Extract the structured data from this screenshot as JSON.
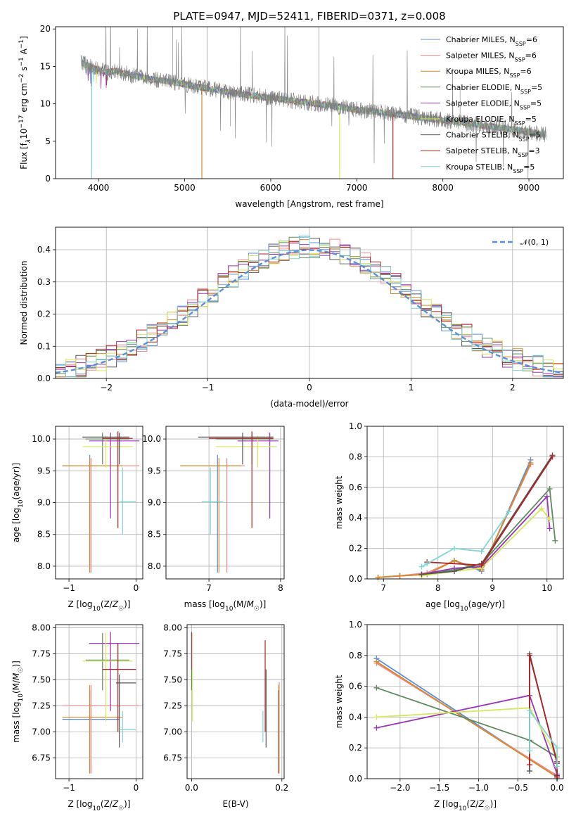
{
  "figure_title": "PLATE=0947, MJD=52411, FIBERID=0371, z=0.008",
  "series": [
    {
      "key": "chab_miles",
      "label": "Chabrier MILES, N",
      "sub": "SSP",
      "suffix": "=6",
      "color": "#5b8fd9"
    },
    {
      "key": "salp_miles",
      "label": "Salpeter MILES, N",
      "sub": "SSP",
      "suffix": "=6",
      "color": "#f08a8a"
    },
    {
      "key": "krou_miles",
      "label": "Kroupa MILES, N",
      "sub": "SSP",
      "suffix": "=6",
      "color": "#d48a2a"
    },
    {
      "key": "chab_elodie",
      "label": "Chabrier ELODIE, N",
      "sub": "SSP",
      "suffix": "=5",
      "color": "#5e8a5e"
    },
    {
      "key": "salp_elodie",
      "label": "Salpeter ELODIE, N",
      "sub": "SSP",
      "suffix": "=5",
      "color": "#9a35b8"
    },
    {
      "key": "krou_elodie",
      "label": "Kroupa ELODIE, N",
      "sub": "SSP",
      "suffix": "=5",
      "color": "#d4e85a"
    },
    {
      "key": "chab_stelib",
      "label": "Chabrier STELIB, N",
      "sub": "SSP",
      "suffix": "=5",
      "color": "#555555"
    },
    {
      "key": "salp_stelib",
      "label": "Salpeter STELIB, N",
      "sub": "SSP",
      "suffix": "=3",
      "color": "#b22222"
    },
    {
      "key": "krou_stelib",
      "label": "Kroupa STELIB, N",
      "sub": "SSP",
      "suffix": "=5",
      "color": "#7fd6d6"
    }
  ],
  "chart_data": [
    {
      "id": "spectrum",
      "type": "line",
      "xlabel": "wavelength [Angstrom, rest frame]",
      "ylabel_parts": [
        "Flux [f",
        "λ",
        "10",
        "−17",
        " erg cm",
        "−2",
        " s",
        "−1",
        " A",
        "−1",
        "]"
      ],
      "xlim": [
        3500,
        9400
      ],
      "ylim": [
        0,
        20.3
      ],
      "xticks": [
        4000,
        5000,
        6000,
        7000,
        8000,
        9000
      ],
      "yticks": [
        0,
        5,
        10,
        15,
        20
      ],
      "continuum": {
        "x": [
          3800,
          3900,
          4000,
          4100,
          4200,
          4400,
          4600,
          4800,
          5000,
          5200,
          5400,
          5600,
          5800,
          6000,
          6200,
          6400,
          6600,
          6800,
          7000,
          7200,
          7400,
          7600,
          7800,
          8000,
          8200,
          8400,
          8600,
          8800,
          9000,
          9200
        ],
        "y": [
          15.5,
          15.0,
          14.6,
          14.2,
          14.4,
          13.8,
          13.3,
          13.0,
          12.6,
          12.2,
          11.8,
          11.4,
          11.1,
          10.8,
          10.5,
          10.2,
          9.9,
          9.6,
          9.2,
          9.0,
          8.7,
          8.4,
          8.1,
          7.8,
          7.5,
          7.2,
          6.9,
          6.6,
          6.2,
          5.9
        ]
      }
    },
    {
      "id": "residuals",
      "type": "step",
      "xlabel": "(data-model)/error",
      "ylabel": "Normed distribution",
      "xlim": [
        -2.5,
        2.5
      ],
      "ylim": [
        0,
        0.47
      ],
      "xticks": [
        -2,
        -1,
        0,
        1,
        2
      ],
      "yticks": [
        0.0,
        0.1,
        0.2,
        0.3,
        0.4
      ],
      "legend": "𝒩(0, 1)",
      "legend_color": "#5b8fd9"
    },
    {
      "id": "age_vs_Z",
      "type": "errorbar",
      "xlabel": "Z [log10(Z/Z☉)]",
      "ylabel": "age [log10(age/yr)]",
      "xlim": [
        -1.2,
        0.1
      ],
      "ylim": [
        7.8,
        10.2
      ],
      "xticks": [
        -1,
        0
      ],
      "yticks": [
        8.0,
        8.5,
        9.0,
        9.5,
        10.0
      ],
      "points": [
        {
          "s": "chab_miles",
          "x": -0.69,
          "y": 9.58,
          "xe": [
            -1.1,
            -0.25
          ],
          "ye": [
            7.9,
            9.75
          ]
        },
        {
          "s": "salp_miles",
          "x": -0.67,
          "y": 9.58,
          "xe": [
            -1.1,
            0.05
          ],
          "ye": [
            7.9,
            9.7
          ]
        },
        {
          "s": "krou_miles",
          "x": -0.69,
          "y": 9.58,
          "xe": [
            -1.1,
            -0.2
          ],
          "ye": [
            7.9,
            9.7
          ]
        },
        {
          "s": "chab_elodie",
          "x": -0.5,
          "y": 10.0,
          "xe": [
            -0.75,
            -0.1
          ],
          "ye": [
            9.6,
            10.1
          ]
        },
        {
          "s": "salp_elodie",
          "x": -0.38,
          "y": 9.97,
          "xe": [
            -0.7,
            0.05
          ],
          "ye": [
            8.75,
            10.1
          ]
        },
        {
          "s": "krou_elodie",
          "x": -0.45,
          "y": 9.88,
          "xe": [
            -0.8,
            -0.05
          ],
          "ye": [
            9.55,
            10.05
          ]
        },
        {
          "s": "chab_stelib",
          "x": -0.25,
          "y": 10.03,
          "xe": [
            -0.8,
            -0.1
          ],
          "ye": [
            9.6,
            10.1
          ]
        },
        {
          "s": "salp_stelib",
          "x": -0.27,
          "y": 10.01,
          "xe": [
            -0.5,
            -0.05
          ],
          "ye": [
            8.6,
            10.12
          ]
        },
        {
          "s": "krou_stelib",
          "x": -0.2,
          "y": 9.02,
          "xe": [
            -0.25,
            0.0
          ],
          "ye": [
            8.5,
            9.55
          ]
        }
      ]
    },
    {
      "id": "age_vs_mass",
      "type": "errorbar",
      "xlabel": "mass [log10(M/M☉)]",
      "ylabel": "",
      "xlim": [
        6.4,
        8.05
      ],
      "ylim": [
        7.8,
        10.2
      ],
      "xticks": [
        7,
        8
      ],
      "yticks": [
        8.0,
        8.5,
        9.0,
        9.5,
        10.0
      ],
      "points": [
        {
          "s": "chab_miles",
          "x": 7.12,
          "y": 9.58,
          "xe": [
            6.6,
            7.45
          ],
          "ye": [
            7.9,
            9.75
          ]
        },
        {
          "s": "salp_miles",
          "x": 7.25,
          "y": 9.58,
          "xe": [
            6.6,
            7.5
          ],
          "ye": [
            7.9,
            9.7
          ]
        },
        {
          "s": "krou_miles",
          "x": 7.14,
          "y": 9.58,
          "xe": [
            6.6,
            7.45
          ],
          "ye": [
            7.9,
            9.7
          ]
        },
        {
          "s": "chab_elodie",
          "x": 7.6,
          "y": 10.0,
          "xe": [
            7.1,
            7.9
          ],
          "ye": [
            9.6,
            10.1
          ]
        },
        {
          "s": "salp_elodie",
          "x": 7.85,
          "y": 9.97,
          "xe": [
            7.4,
            7.97
          ],
          "ye": [
            8.75,
            10.1
          ]
        },
        {
          "s": "krou_elodie",
          "x": 7.68,
          "y": 9.88,
          "xe": [
            7.1,
            7.95
          ],
          "ye": [
            9.55,
            10.05
          ]
        },
        {
          "s": "chab_stelib",
          "x": 7.47,
          "y": 10.03,
          "xe": [
            6.85,
            7.9
          ],
          "ye": [
            9.6,
            10.1
          ]
        },
        {
          "s": "salp_stelib",
          "x": 7.6,
          "y": 10.01,
          "xe": [
            7.0,
            7.9
          ],
          "ye": [
            8.6,
            10.12
          ]
        },
        {
          "s": "krou_stelib",
          "x": 7.02,
          "y": 9.02,
          "xe": [
            6.9,
            7.2
          ],
          "ye": [
            8.5,
            9.55
          ]
        }
      ]
    },
    {
      "id": "weight_vs_age",
      "type": "line",
      "xlabel": "age [log10(age/yr)]",
      "ylabel": "mass weight",
      "xlim": [
        6.7,
        10.3
      ],
      "ylim": [
        0,
        1.0
      ],
      "xticks": [
        7,
        8,
        9,
        10
      ],
      "yticks": [
        0.0,
        0.2,
        0.4,
        0.6,
        0.8,
        1.0
      ],
      "lines": [
        {
          "s": "chab_miles",
          "x": [
            6.9,
            7.3,
            7.8,
            8.3,
            8.8,
            9.7
          ],
          "y": [
            0.01,
            0.02,
            0.03,
            0.12,
            0.05,
            0.78
          ]
        },
        {
          "s": "salp_miles",
          "x": [
            6.9,
            7.3,
            7.8,
            8.3,
            8.8,
            9.7
          ],
          "y": [
            0.01,
            0.02,
            0.04,
            0.12,
            0.06,
            0.75
          ]
        },
        {
          "s": "krou_miles",
          "x": [
            6.9,
            7.3,
            7.8,
            8.3,
            8.8,
            9.7
          ],
          "y": [
            0.01,
            0.02,
            0.03,
            0.12,
            0.06,
            0.76
          ]
        },
        {
          "s": "chab_elodie",
          "x": [
            7.7,
            8.3,
            8.8,
            10.05,
            10.15
          ],
          "y": [
            0.03,
            0.06,
            0.1,
            0.59,
            0.25
          ]
        },
        {
          "s": "salp_elodie",
          "x": [
            7.7,
            8.3,
            8.8,
            10.0,
            10.05
          ],
          "y": [
            0.03,
            0.07,
            0.08,
            0.54,
            0.33
          ]
        },
        {
          "s": "krou_elodie",
          "x": [
            7.7,
            8.3,
            8.8,
            9.9,
            10.05
          ],
          "y": [
            0.02,
            0.05,
            0.07,
            0.46,
            0.39
          ]
        },
        {
          "s": "chab_stelib",
          "x": [
            7.7,
            8.3,
            8.8,
            10.1
          ],
          "y": [
            0.03,
            0.05,
            0.1,
            0.81
          ]
        },
        {
          "s": "salp_stelib",
          "x": [
            7.8,
            8.8,
            10.1
          ],
          "y": [
            0.11,
            0.09,
            0.8
          ]
        },
        {
          "s": "krou_stelib",
          "x": [
            7.7,
            7.8,
            8.3,
            8.8,
            9.3
          ],
          "y": [
            0.08,
            0.1,
            0.2,
            0.18,
            0.44
          ]
        }
      ]
    },
    {
      "id": "mass_vs_Z",
      "type": "errorbar",
      "xlabel": "Z [log10(Z/Z☉)]",
      "ylabel": "mass [log10(M/M☉)]",
      "xlim": [
        -1.2,
        0.1
      ],
      "ylim": [
        6.55,
        8.03
      ],
      "xticks": [
        -1,
        0
      ],
      "yticks": [
        6.75,
        7.0,
        7.25,
        7.5,
        7.75,
        8.0
      ],
      "points": [
        {
          "s": "chab_miles",
          "x": -0.69,
          "y": 7.12,
          "xe": [
            -1.1,
            -0.25
          ],
          "ye": [
            6.6,
            7.4
          ]
        },
        {
          "s": "salp_miles",
          "x": -0.67,
          "y": 7.25,
          "xe": [
            -1.1,
            0.05
          ],
          "ye": [
            6.6,
            7.45
          ]
        },
        {
          "s": "krou_miles",
          "x": -0.69,
          "y": 7.14,
          "xe": [
            -1.1,
            -0.2
          ],
          "ye": [
            6.6,
            7.45
          ]
        },
        {
          "s": "chab_elodie",
          "x": -0.5,
          "y": 7.69,
          "xe": [
            -0.75,
            -0.1
          ],
          "ye": [
            7.4,
            7.95
          ]
        },
        {
          "s": "salp_elodie",
          "x": -0.38,
          "y": 7.85,
          "xe": [
            -0.7,
            0.05
          ],
          "ye": [
            7.2,
            7.96
          ]
        },
        {
          "s": "krou_elodie",
          "x": -0.45,
          "y": 7.68,
          "xe": [
            -0.8,
            -0.05
          ],
          "ye": [
            7.1,
            7.95
          ]
        },
        {
          "s": "chab_stelib",
          "x": -0.25,
          "y": 7.47,
          "xe": [
            -0.3,
            0.0
          ],
          "ye": [
            6.85,
            7.55
          ]
        },
        {
          "s": "salp_stelib",
          "x": -0.27,
          "y": 7.6,
          "xe": [
            -0.5,
            0.0
          ],
          "ye": [
            7.0,
            7.85
          ]
        },
        {
          "s": "krou_stelib",
          "x": -0.2,
          "y": 7.02,
          "xe": [
            -0.25,
            0.0
          ],
          "ye": [
            6.9,
            7.2
          ]
        }
      ]
    },
    {
      "id": "mass_vs_ebv",
      "type": "errorbar",
      "xlabel": "E(B-V)",
      "ylabel": "",
      "xlim": [
        -0.01,
        0.205
      ],
      "ylim": [
        6.55,
        8.03
      ],
      "xticks": [
        0.0,
        0.2
      ],
      "yticks": [
        6.75,
        7.0,
        7.25,
        7.5,
        7.75,
        8.0
      ],
      "points": [
        {
          "s": "chab_miles",
          "x": 0.192,
          "y": 7.12,
          "xe": [
            0.192,
            0.192
          ],
          "ye": [
            6.6,
            7.4
          ]
        },
        {
          "s": "salp_miles",
          "x": 0.194,
          "y": 7.25,
          "xe": [
            0.194,
            0.194
          ],
          "ye": [
            6.6,
            7.48
          ]
        },
        {
          "s": "krou_miles",
          "x": 0.193,
          "y": 7.14,
          "xe": [
            0.193,
            0.193
          ],
          "ye": [
            6.6,
            7.45
          ]
        },
        {
          "s": "chab_elodie",
          "x": 0.0,
          "y": 7.69,
          "xe": [
            0.0,
            0.0
          ],
          "ye": [
            7.4,
            7.95
          ]
        },
        {
          "s": "salp_elodie",
          "x": 0.0,
          "y": 7.85,
          "xe": [
            0.0,
            0.0
          ],
          "ye": [
            7.6,
            7.96
          ]
        },
        {
          "s": "krou_elodie",
          "x": 0.002,
          "y": 7.68,
          "xe": [
            0.002,
            0.002
          ],
          "ye": [
            7.1,
            7.95
          ]
        },
        {
          "s": "chab_stelib",
          "x": 0.165,
          "y": 7.47,
          "xe": [
            0.165,
            0.165
          ],
          "ye": [
            6.85,
            7.6
          ]
        },
        {
          "s": "salp_stelib",
          "x": 0.163,
          "y": 7.6,
          "xe": [
            0.163,
            0.163
          ],
          "ye": [
            7.0,
            7.88
          ]
        },
        {
          "s": "krou_stelib",
          "x": 0.158,
          "y": 7.02,
          "xe": [
            0.158,
            0.158
          ],
          "ye": [
            6.9,
            7.2
          ]
        }
      ]
    },
    {
      "id": "weight_vs_Z",
      "type": "line",
      "xlabel": "Z [log10(Z/Z☉)]",
      "ylabel": "mass weight",
      "xlim": [
        -2.42,
        0.08
      ],
      "ylim": [
        0,
        1.0
      ],
      "xticks": [
        -2.0,
        -1.5,
        -1.0,
        -0.5,
        0.0
      ],
      "yticks": [
        0.0,
        0.2,
        0.4,
        0.6,
        0.8,
        1.0
      ],
      "lines": [
        {
          "s": "chab_miles",
          "x": [
            -2.3,
            0.0,
            -0.0
          ],
          "y": [
            0.78,
            0.01,
            0.0
          ]
        },
        {
          "s": "salp_miles",
          "x": [
            -2.3,
            0.0
          ],
          "y": [
            0.75,
            0.02
          ]
        },
        {
          "s": "krou_miles",
          "x": [
            -2.3,
            0.0
          ],
          "y": [
            0.76,
            0.01
          ]
        },
        {
          "s": "chab_elodie",
          "x": [
            -2.3,
            -0.35,
            0.0,
            0.0
          ],
          "y": [
            0.59,
            0.25,
            0.14,
            0.02
          ]
        },
        {
          "s": "salp_elodie",
          "x": [
            -2.3,
            -0.35,
            0.0,
            0.0
          ],
          "y": [
            0.33,
            0.54,
            0.03,
            0.1
          ]
        },
        {
          "s": "krou_elodie",
          "x": [
            -2.3,
            -0.35,
            0.0
          ],
          "y": [
            0.4,
            0.46,
            0.14
          ]
        },
        {
          "s": "chab_stelib",
          "x": [
            -0.35,
            -0.35,
            0.0,
            0.0
          ],
          "y": [
            0.05,
            0.81,
            0.1,
            0.02
          ]
        },
        {
          "s": "salp_stelib",
          "x": [
            -0.35,
            -0.35,
            0.0,
            0.0
          ],
          "y": [
            0.09,
            0.8,
            0.11,
            0.01
          ]
        },
        {
          "s": "krou_stelib",
          "x": [
            -0.35,
            -0.35,
            0.0,
            0.0
          ],
          "y": [
            0.18,
            0.44,
            0.2,
            0.08
          ]
        }
      ]
    }
  ]
}
